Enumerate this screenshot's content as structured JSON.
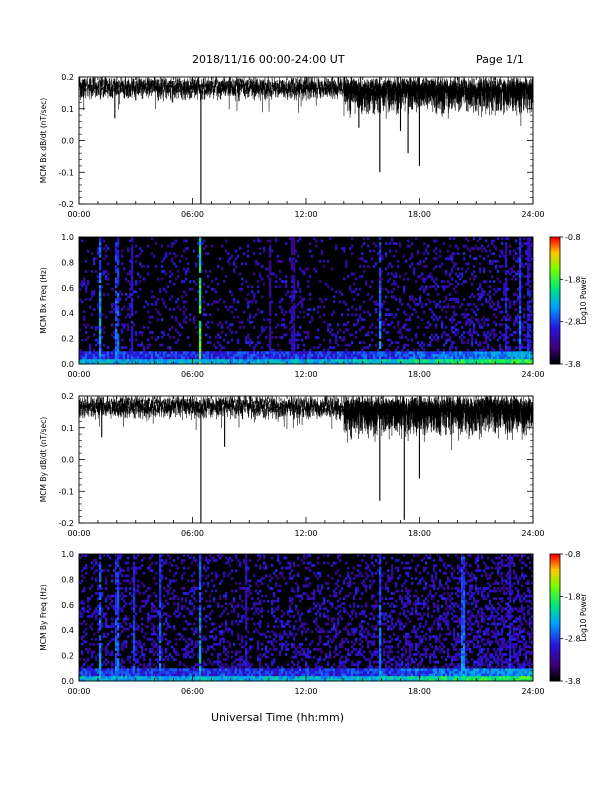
{
  "header": {
    "title": "2018/11/16  00:00-24:00 UT",
    "page": "Page 1/1"
  },
  "footer": {
    "xlabel": "Universal Time (hh:mm)"
  },
  "chart_data": [
    {
      "type": "line",
      "ylabel": "MCM Bx dB/dt (nT/sec)",
      "xlim": [
        0,
        24
      ],
      "ylim": [
        -0.2,
        0.2
      ],
      "x_ticklabels": [
        "00:00",
        "06:00",
        "12:00",
        "18:00",
        "24:00"
      ],
      "y_ticklabels": [
        "0.2",
        "0.1",
        "0.0",
        "-0.1",
        "-0.2"
      ],
      "baseline": 0.17,
      "features": [
        {
          "x": 1.9,
          "y": 0.07
        },
        {
          "x": 6.45,
          "y": -0.2
        },
        {
          "x": 14.8,
          "y": 0.04
        },
        {
          "x": 15.9,
          "y": -0.1
        },
        {
          "x": 17.0,
          "y": 0.03
        },
        {
          "x": 17.4,
          "y": -0.04
        },
        {
          "x": 18.0,
          "y": -0.08
        }
      ],
      "series_color": "#000000"
    },
    {
      "type": "heatmap",
      "ylabel": "MCM Bx Freq (Hz)",
      "xlim": [
        0,
        24
      ],
      "ylim": [
        0,
        1.0
      ],
      "x_ticklabels": [
        "00:00",
        "06:00",
        "12:00",
        "18:00",
        "24:00"
      ],
      "y_ticklabels": [
        "1.0",
        "0.8",
        "0.6",
        "0.4",
        "0.2",
        "0.0"
      ],
      "colorbar": {
        "label": "Log10 Power",
        "range": [
          -3.8,
          -0.8
        ],
        "ticklabels": [
          "-0.8",
          "-1.8",
          "-2.8",
          "-3.8"
        ]
      },
      "bright_columns": [
        {
          "x": 1.1,
          "level": 0.55
        },
        {
          "x": 2.0,
          "level": 0.45
        },
        {
          "x": 2.8,
          "level": 0.35
        },
        {
          "x": 6.4,
          "level": 0.85
        },
        {
          "x": 10.1,
          "level": 0.25
        },
        {
          "x": 11.3,
          "level": 0.25
        },
        {
          "x": 15.9,
          "level": 0.5
        },
        {
          "x": 22.6,
          "level": 0.35
        },
        {
          "x": 23.3,
          "level": 0.45
        },
        {
          "x": 23.8,
          "level": 0.35
        }
      ]
    },
    {
      "type": "line",
      "ylabel": "MCM By dB/dt (nT/sec)",
      "xlim": [
        0,
        24
      ],
      "ylim": [
        -0.2,
        0.2
      ],
      "x_ticklabels": [
        "00:00",
        "06:00",
        "12:00",
        "18:00",
        "24:00"
      ],
      "y_ticklabels": [
        "0.2",
        "0.1",
        "0.0",
        "-0.1",
        "-0.2"
      ],
      "baseline": 0.17,
      "features": [
        {
          "x": 1.2,
          "y": 0.07
        },
        {
          "x": 6.45,
          "y": -0.2
        },
        {
          "x": 7.7,
          "y": 0.04
        },
        {
          "x": 15.9,
          "y": -0.13
        },
        {
          "x": 17.2,
          "y": -0.19
        },
        {
          "x": 18.0,
          "y": -0.06
        }
      ],
      "series_color": "#000000"
    },
    {
      "type": "heatmap",
      "ylabel": "MCM By Freq (Hz)",
      "xlim": [
        0,
        24
      ],
      "ylim": [
        0,
        1.0
      ],
      "x_ticklabels": [
        "00:00",
        "06:00",
        "12:00",
        "18:00",
        "24:00"
      ],
      "y_ticklabels": [
        "1.0",
        "0.8",
        "0.6",
        "0.4",
        "0.2",
        "0.0"
      ],
      "colorbar": {
        "label": "Log10 Power",
        "range": [
          -3.8,
          -0.8
        ],
        "ticklabels": [
          "-0.8",
          "-1.8",
          "-2.8",
          "-3.8"
        ]
      },
      "bright_columns": [
        {
          "x": 1.1,
          "level": 0.5
        },
        {
          "x": 2.0,
          "level": 0.45
        },
        {
          "x": 2.9,
          "level": 0.4
        },
        {
          "x": 4.3,
          "level": 0.45
        },
        {
          "x": 6.4,
          "level": 0.55
        },
        {
          "x": 8.8,
          "level": 0.3
        },
        {
          "x": 15.9,
          "level": 0.5
        },
        {
          "x": 20.3,
          "level": 0.5
        },
        {
          "x": 22.8,
          "level": 0.35
        }
      ]
    }
  ]
}
